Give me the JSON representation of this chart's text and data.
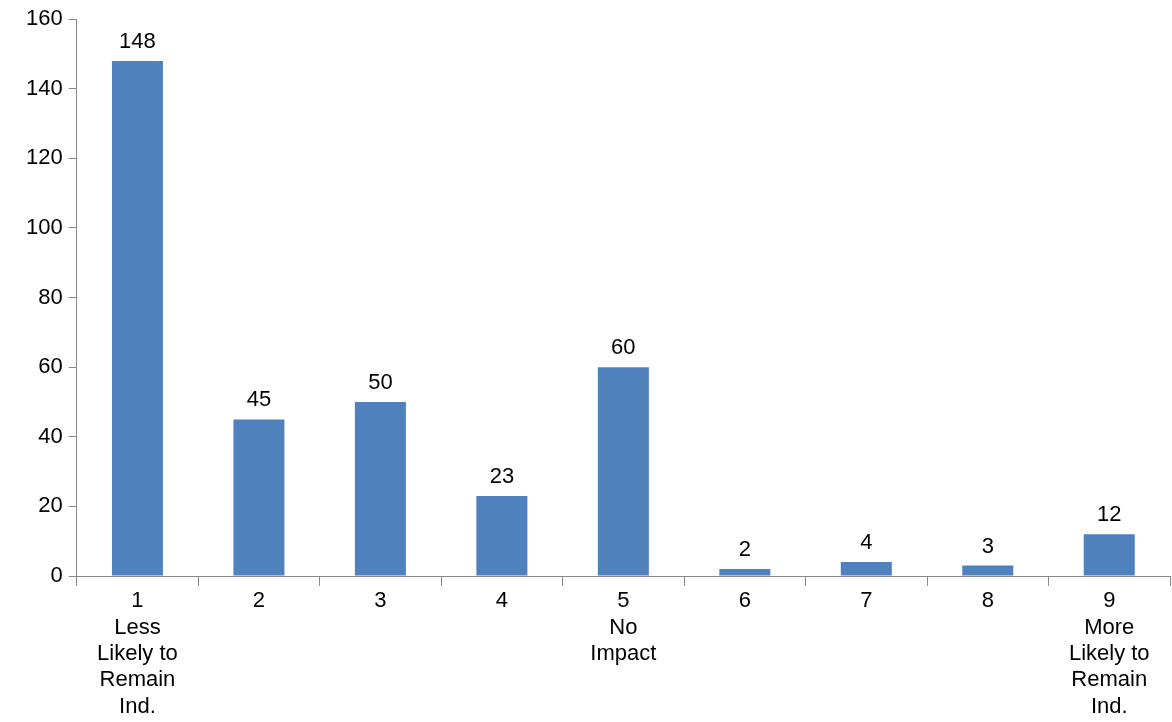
{
  "chart_data": {
    "type": "bar",
    "categories": [
      "1\nLess\nLikely to\nRemain\nInd.",
      "2",
      "3",
      "4",
      "5\nNo\nImpact",
      "6",
      "7",
      "8",
      "9\nMore\nLikely to\nRemain\nInd."
    ],
    "values": [
      148,
      45,
      50,
      23,
      60,
      2,
      4,
      3,
      12
    ],
    "color": "#4f81bd",
    "ylim": [
      0,
      160
    ],
    "yticks": [
      0,
      20,
      40,
      60,
      80,
      100,
      120,
      140,
      160
    ],
    "grid": false,
    "legend": false,
    "data_labels": true
  }
}
